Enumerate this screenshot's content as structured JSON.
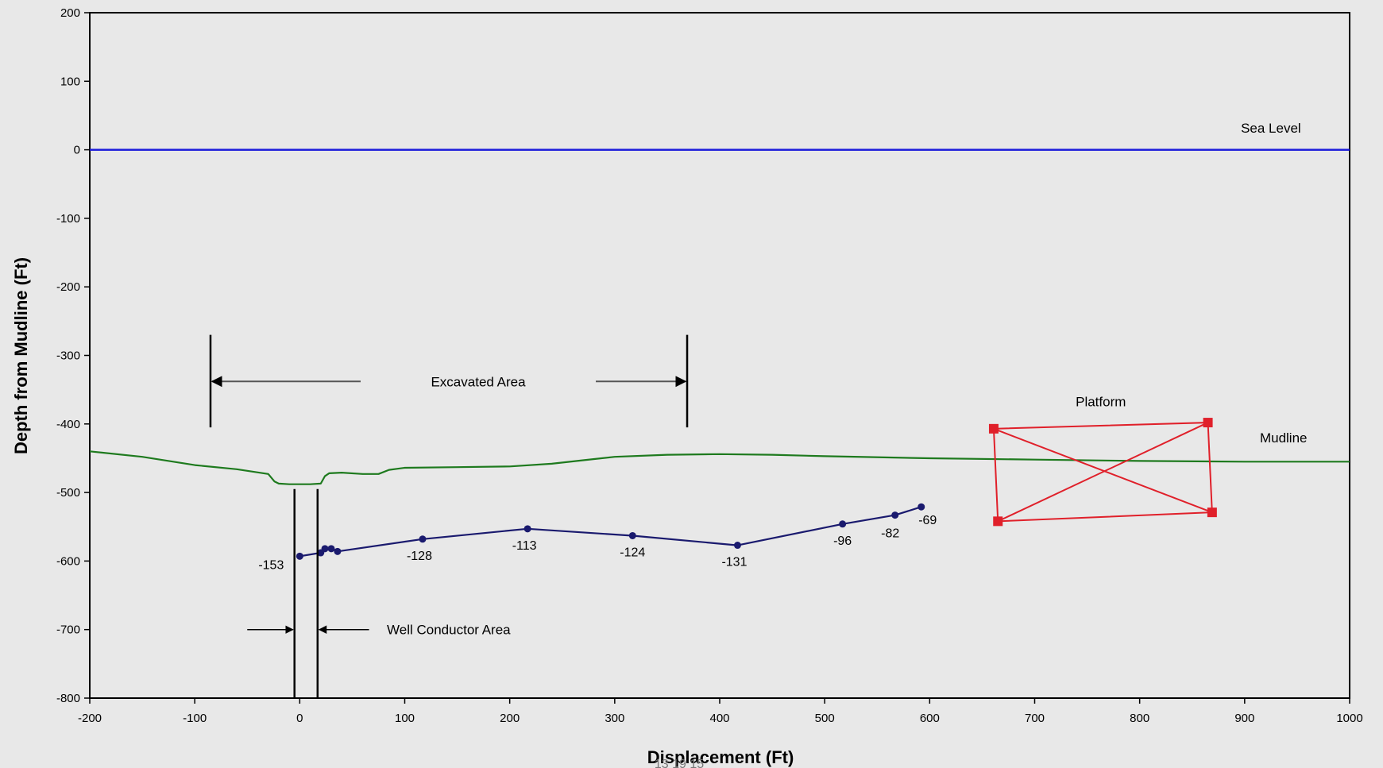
{
  "chart_data": {
    "type": "line",
    "title": "",
    "xlabel": "Displacement (Ft)",
    "ylabel": "Depth from Mudline (Ft)",
    "xlim": [
      -200,
      1000
    ],
    "ylim": [
      -800,
      200
    ],
    "xticks": [
      -200,
      -100,
      0,
      100,
      200,
      300,
      400,
      500,
      600,
      700,
      800,
      900,
      1000
    ],
    "yticks": [
      200,
      100,
      0,
      -100,
      -200,
      -300,
      -400,
      -500,
      -600,
      -700,
      -800
    ],
    "grid": false,
    "legend": "none",
    "series": [
      {
        "name": "Sea Level",
        "color": "#1a1adb",
        "x": [
          -200,
          1000
        ],
        "y": [
          0,
          0
        ]
      },
      {
        "name": "Mudline",
        "color": "#1e7a1e",
        "x": [
          -200,
          -150,
          -100,
          -60,
          -30,
          -24,
          -20,
          -10,
          0,
          10,
          20,
          24,
          28,
          40,
          60,
          75,
          85,
          100,
          150,
          200,
          240,
          270,
          300,
          350,
          400,
          450,
          500,
          600,
          700,
          800,
          900,
          1000
        ],
        "y": [
          -440,
          -448,
          -460,
          -466,
          -473,
          -484,
          -487,
          -488,
          -488,
          -488,
          -487,
          -476,
          -472,
          -471,
          -473,
          -473,
          -467,
          -464,
          -463,
          -462,
          -458,
          -453,
          -448,
          -445,
          -444,
          -445,
          -447,
          -450,
          -452,
          -454,
          -455,
          -455
        ]
      },
      {
        "name": "",
        "color": "#1a1a6e",
        "x": [
          0,
          20,
          24,
          30,
          36,
          117,
          217,
          317,
          417,
          517,
          567,
          592
        ],
        "y": [
          -593,
          -588,
          -582,
          -582,
          -586,
          -568,
          -553,
          -563,
          -577,
          -546,
          -533,
          -521
        ],
        "labels": [
          {
            "x": 0,
            "text": "-153"
          },
          {
            "x": 117,
            "text": "-128"
          },
          {
            "x": 217,
            "text": "-113"
          },
          {
            "x": 317,
            "text": "-124"
          },
          {
            "x": 417,
            "text": "-131"
          },
          {
            "x": 517,
            "text": "-96"
          },
          {
            "x": 567,
            "text": "-82"
          },
          {
            "x": 592,
            "text": "-69"
          }
        ]
      }
    ],
    "annotations": {
      "sea_level": "Sea Level",
      "mudline": "Mudline",
      "platform": "Platform",
      "excavated_area": "Excavated Area",
      "well_conductor_area": "Well Conductor Area",
      "excavated_range": [
        -85,
        369
      ],
      "well_conductor_range": [
        -5,
        17
      ],
      "platform_corners": [
        [
          661,
          -407
        ],
        [
          865,
          -398
        ],
        [
          869,
          -529
        ],
        [
          665,
          -542
        ]
      ]
    },
    "colors": {
      "platform": "#e0202a"
    }
  },
  "footer": {
    "text": "13 19 15"
  }
}
